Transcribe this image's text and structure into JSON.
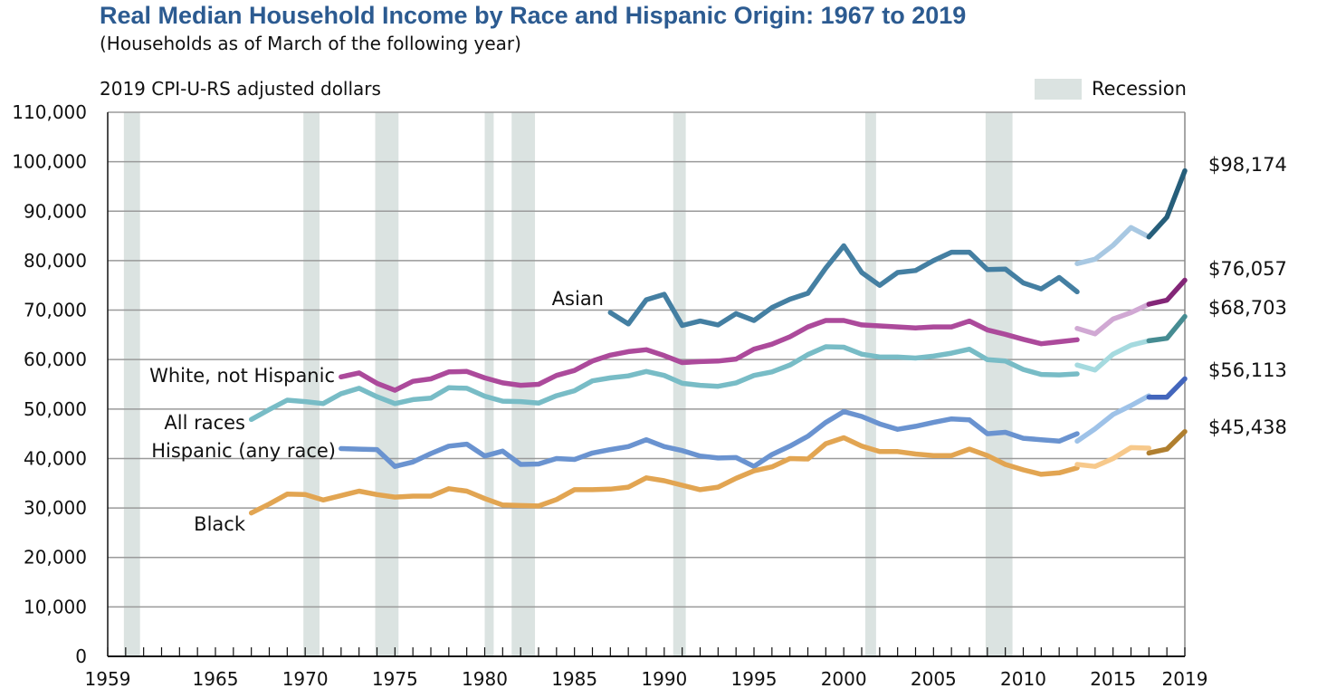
{
  "chart_data": {
    "type": "line",
    "title": "Real Median Household Income by Race and Hispanic Origin: 1967 to 2019",
    "subtitle": "(Households as of March of the following year)",
    "ylabel": "2019 CPI-U-RS adjusted dollars",
    "xlabel": "",
    "xlim": [
      1959,
      2019
    ],
    "ylim": [
      0,
      110000
    ],
    "grid": true,
    "y_ticks": [
      0,
      10000,
      20000,
      30000,
      40000,
      50000,
      60000,
      70000,
      80000,
      90000,
      100000,
      110000
    ],
    "y_tick_labels": [
      "0",
      "10,000",
      "20,000",
      "30,000",
      "40,000",
      "50,000",
      "60,000",
      "70,000",
      "80,000",
      "90,000",
      "100,000",
      "110,000"
    ],
    "x_tick_labels": [
      {
        "year": 1959,
        "label": "1959"
      },
      {
        "year": 1965,
        "label": "1965"
      },
      {
        "year": 1970,
        "label": "1970"
      },
      {
        "year": 1975,
        "label": "1975"
      },
      {
        "year": 1980,
        "label": "1980"
      },
      {
        "year": 1985,
        "label": "1985"
      },
      {
        "year": 1990,
        "label": "1990"
      },
      {
        "year": 1995,
        "label": "1995"
      },
      {
        "year": 2000,
        "label": "2000"
      },
      {
        "year": 2005,
        "label": "2005"
      },
      {
        "year": 2010,
        "label": "2010"
      },
      {
        "year": 2015,
        "label": "2015"
      },
      {
        "year": 2019,
        "label": "2019"
      }
    ],
    "legend": {
      "label": "Recession",
      "color": "#dbe3e1",
      "position": "top-right"
    },
    "recessions": [
      [
        1959.9,
        1960.8
      ],
      [
        1969.9,
        1970.8
      ],
      [
        1973.9,
        1975.2
      ],
      [
        1980.0,
        1980.5
      ],
      [
        1981.5,
        1982.8
      ],
      [
        1990.5,
        1991.2
      ],
      [
        2001.2,
        2001.8
      ],
      [
        2007.9,
        2009.4
      ]
    ],
    "series": [
      {
        "name": "Asian",
        "label": "Asian",
        "end_label": "$98,174",
        "colors": [
          "#447fa2",
          "#a8c8e2",
          "#265e7a"
        ],
        "segments": [
          {
            "x": [
              1987,
              1988,
              1989,
              1990,
              1991,
              1992,
              1993,
              1994,
              1995,
              1996,
              1997,
              1998,
              1999,
              2000,
              2001,
              2002,
              2003,
              2004,
              2005,
              2006,
              2007,
              2008,
              2009,
              2010,
              2011,
              2012,
              2013
            ],
            "y": [
              69500,
              67200,
              72100,
              73200,
              66900,
              67800,
              67000,
              69300,
              67900,
              70500,
              72200,
              73400,
              78500,
              83000,
              77600,
              75000,
              77600,
              78000,
              80000,
              81700,
              81700,
              78200,
              78300,
              75500,
              74300,
              76600,
              73700
            ]
          },
          {
            "x": [
              2013,
              2014,
              2015,
              2016,
              2017
            ],
            "y": [
              79400,
              80300,
              83100,
              86700,
              84800
            ]
          },
          {
            "x": [
              2017,
              2018,
              2019
            ],
            "y": [
              84800,
              88800,
              98174
            ]
          }
        ]
      },
      {
        "name": "White, not Hispanic",
        "label": "White, not Hispanic",
        "end_label": "$76,057",
        "colors": [
          "#ac4a9b",
          "#d0a8d3",
          "#832677"
        ],
        "segments": [
          {
            "x": [
              1972,
              1973,
              1974,
              1975,
              1976,
              1977,
              1978,
              1979,
              1980,
              1981,
              1982,
              1983,
              1984,
              1985,
              1986,
              1987,
              1988,
              1989,
              1990,
              1991,
              1992,
              1993,
              1994,
              1995,
              1996,
              1997,
              1998,
              1999,
              2000,
              2001,
              2002,
              2003,
              2004,
              2005,
              2006,
              2007,
              2008,
              2009,
              2010,
              2011,
              2012,
              2013
            ],
            "y": [
              56500,
              57300,
              55200,
              53800,
              55600,
              56100,
              57500,
              57600,
              56300,
              55300,
              54800,
              55000,
              56800,
              57800,
              59700,
              60900,
              61600,
              62000,
              60800,
              59400,
              59600,
              59700,
              60100,
              62100,
              63100,
              64600,
              66600,
              67900,
              67900,
              67000,
              66800,
              66600,
              66400,
              66600,
              66600,
              67800,
              66000,
              65100,
              64100,
              63200,
              63600,
              64000
            ]
          },
          {
            "x": [
              2013,
              2014,
              2015,
              2016,
              2017
            ],
            "y": [
              66300,
              65200,
              68200,
              69500,
              71200
            ]
          },
          {
            "x": [
              2017,
              2018,
              2019
            ],
            "y": [
              71200,
              72000,
              76057
            ]
          }
        ]
      },
      {
        "name": "All races",
        "label": "All races",
        "end_label": "$68,703",
        "colors": [
          "#78bcc6",
          "#a5dadf",
          "#468c92"
        ],
        "segments": [
          {
            "x": [
              1967,
              1968,
              1969,
              1970,
              1971,
              1972,
              1973,
              1974,
              1975,
              1976,
              1977,
              1978,
              1979,
              1980,
              1981,
              1982,
              1983,
              1984,
              1985,
              1986,
              1987,
              1988,
              1989,
              1990,
              1991,
              1992,
              1993,
              1994,
              1995,
              1996,
              1997,
              1998,
              1999,
              2000,
              2001,
              2002,
              2003,
              2004,
              2005,
              2006,
              2007,
              2008,
              2009,
              2010,
              2011,
              2012,
              2013
            ],
            "y": [
              47900,
              49900,
              51800,
              51500,
              51100,
              53100,
              54200,
              52500,
              51100,
              51900,
              52200,
              54300,
              54200,
              52600,
              51600,
              51500,
              51200,
              52700,
              53700,
              55700,
              56300,
              56700,
              57600,
              56800,
              55200,
              54800,
              54600,
              55300,
              56800,
              57500,
              58900,
              61000,
              62600,
              62500,
              61100,
              60500,
              60500,
              60300,
              60700,
              61300,
              62100,
              60000,
              59700,
              58000,
              57000,
              56900,
              57100
            ]
          },
          {
            "x": [
              2013,
              2014,
              2015,
              2016,
              2017
            ],
            "y": [
              58900,
              57900,
              61100,
              62900,
              63800
            ]
          },
          {
            "x": [
              2017,
              2018,
              2019
            ],
            "y": [
              63800,
              64300,
              68703
            ]
          }
        ]
      },
      {
        "name": "Hispanic (any race)",
        "label": "Hispanic (any race)",
        "end_label": "$56,113",
        "colors": [
          "#6a93d0",
          "#9ec2e8",
          "#4366bc"
        ],
        "segments": [
          {
            "x": [
              1972,
              1973,
              1974,
              1975,
              1976,
              1977,
              1978,
              1979,
              1980,
              1981,
              1982,
              1983,
              1984,
              1985,
              1986,
              1987,
              1988,
              1989,
              1990,
              1991,
              1992,
              1993,
              1994,
              1995,
              1996,
              1997,
              1998,
              1999,
              2000,
              2001,
              2002,
              2003,
              2004,
              2005,
              2006,
              2007,
              2008,
              2009,
              2010,
              2011,
              2012,
              2013
            ],
            "y": [
              42000,
              41900,
              41800,
              38400,
              39300,
              41000,
              42500,
              42900,
              40500,
              41500,
              38800,
              38900,
              40000,
              39800,
              41100,
              41800,
              42400,
              43800,
              42400,
              41600,
              40500,
              40100,
              40200,
              38400,
              40800,
              42500,
              44500,
              47300,
              49500,
              48500,
              47000,
              45900,
              46500,
              47300,
              48000,
              47800,
              45000,
              45300,
              44100,
              43800,
              43500,
              45000
            ]
          },
          {
            "x": [
              2013,
              2014,
              2015,
              2016,
              2017
            ],
            "y": [
              43500,
              46000,
              48900,
              50700,
              52700
            ]
          },
          {
            "x": [
              2017,
              2018,
              2019
            ],
            "y": [
              52400,
              52400,
              56113
            ]
          }
        ]
      },
      {
        "name": "Black",
        "label": "Black",
        "end_label": "$45,438",
        "colors": [
          "#e2a552",
          "#f7c98b",
          "#b07f2f"
        ],
        "segments": [
          {
            "x": [
              1967,
              1968,
              1969,
              1970,
              1971,
              1972,
              1973,
              1974,
              1975,
              1976,
              1977,
              1978,
              1979,
              1980,
              1981,
              1982,
              1983,
              1984,
              1985,
              1986,
              1987,
              1988,
              1989,
              1990,
              1991,
              1992,
              1993,
              1994,
              1995,
              1996,
              1997,
              1998,
              1999,
              2000,
              2001,
              2002,
              2003,
              2004,
              2005,
              2006,
              2007,
              2008,
              2009,
              2010,
              2011,
              2012,
              2013
            ],
            "y": [
              29000,
              30800,
              32800,
              32700,
              31600,
              32500,
              33400,
              32700,
              32200,
              32400,
              32400,
              33900,
              33400,
              31900,
              30600,
              30500,
              30400,
              31700,
              33700,
              33700,
              33800,
              34200,
              36100,
              35500,
              34600,
              33700,
              34200,
              36000,
              37500,
              38300,
              40000,
              39900,
              43000,
              44200,
              42500,
              41400,
              41400,
              40900,
              40600,
              40600,
              41900,
              40600,
              38800,
              37700,
              36800,
              37100,
              38100
            ]
          },
          {
            "x": [
              2013,
              2014,
              2015,
              2016,
              2017
            ],
            "y": [
              38800,
              38400,
              40000,
              42200,
              42100
            ]
          },
          {
            "x": [
              2017,
              2018,
              2019
            ],
            "y": [
              41100,
              41900,
              45438
            ]
          }
        ]
      }
    ]
  }
}
